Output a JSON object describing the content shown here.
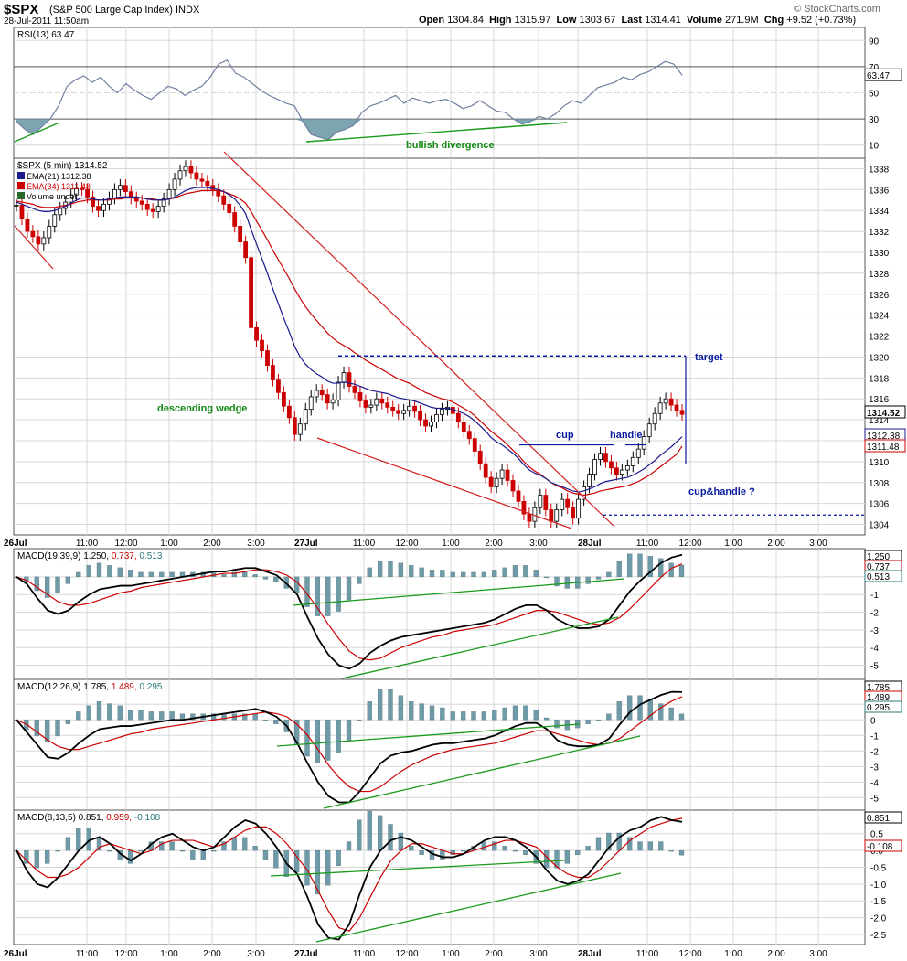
{
  "header": {
    "symbol": "$SPX",
    "name": "(S&P 500 Large Cap Index) INDX",
    "datetime": "28-Jul-2011 11:50am",
    "open_label": "Open",
    "open": "1304.84",
    "high_label": "High",
    "high": "1315.97",
    "low_label": "Low",
    "low": "1303.67",
    "last_label": "Last",
    "last": "1314.41",
    "volume_label": "Volume",
    "volume": "271.9M",
    "chg_label": "Chg",
    "chg": "+9.52 (+0.73%)",
    "logo": "© StockCharts.com"
  },
  "colors": {
    "panel_bg": "#ffffff",
    "grid": "#d8d8d8",
    "candle_up": "#000000",
    "candle_down": "#cc0000",
    "ema21": "#1a1a8c",
    "ema34": "#cc0000",
    "macd": "#000000",
    "signal": "#cc0000",
    "histogram": "#6f9aa8",
    "rsi_line": "#7080a0",
    "rsi_fill": "#6f9aa8",
    "trend_green": "#1a9a1a",
    "trend_red": "#d42020",
    "annotation_blue": "#0a1aa0",
    "annotation_green": "#118811"
  },
  "x_axis": {
    "labels": [
      "26Jul",
      "11:00",
      "12:00",
      "1:00",
      "2:00",
      "3:00",
      "27Jul",
      "11:00",
      "12:00",
      "1:00",
      "2:00",
      "3:00",
      "28Jul",
      "11:00",
      "12:00",
      "1:00",
      "2:00",
      "3:00"
    ]
  },
  "chart_data": [
    {
      "type": "line",
      "title": "RSI(13) 63.47",
      "series": [
        {
          "name": "RSI(13)",
          "last": 63.47
        }
      ],
      "ylim": [
        0,
        100
      ],
      "y_ticks": [
        "90",
        "70",
        "50",
        "30",
        "10"
      ],
      "reference_lines": [
        70,
        50,
        30
      ],
      "value_label": "63.47",
      "annotation": "bullish divergence",
      "points": [
        [
          0,
          28
        ],
        [
          2,
          22
        ],
        [
          4,
          18
        ],
        [
          6,
          24
        ],
        [
          8,
          30
        ],
        [
          10,
          40
        ],
        [
          12,
          55
        ],
        [
          14,
          60
        ],
        [
          16,
          63
        ],
        [
          18,
          58
        ],
        [
          20,
          62
        ],
        [
          22,
          55
        ],
        [
          24,
          50
        ],
        [
          26,
          57
        ],
        [
          28,
          52
        ],
        [
          30,
          48
        ],
        [
          32,
          45
        ],
        [
          34,
          50
        ],
        [
          36,
          55
        ],
        [
          38,
          53
        ],
        [
          40,
          48
        ],
        [
          42,
          52
        ],
        [
          44,
          55
        ],
        [
          46,
          62
        ],
        [
          48,
          72
        ],
        [
          50,
          75
        ],
        [
          52,
          65
        ],
        [
          54,
          62
        ],
        [
          56,
          57
        ],
        [
          58,
          52
        ],
        [
          60,
          48
        ],
        [
          62,
          45
        ],
        [
          64,
          42
        ],
        [
          66,
          40
        ],
        [
          68,
          28
        ],
        [
          70,
          18
        ],
        [
          72,
          16
        ],
        [
          74,
          14
        ],
        [
          76,
          20
        ],
        [
          78,
          22
        ],
        [
          80,
          25
        ],
        [
          82,
          35
        ],
        [
          84,
          40
        ],
        [
          86,
          42
        ],
        [
          88,
          45
        ],
        [
          90,
          48
        ],
        [
          92,
          42
        ],
        [
          94,
          46
        ],
        [
          96,
          44
        ],
        [
          98,
          42
        ],
        [
          100,
          44
        ],
        [
          102,
          45
        ],
        [
          104,
          42
        ],
        [
          106,
          38
        ],
        [
          108,
          40
        ],
        [
          110,
          44
        ],
        [
          112,
          40
        ],
        [
          114,
          36
        ],
        [
          116,
          35
        ],
        [
          118,
          30
        ],
        [
          120,
          26
        ],
        [
          122,
          28
        ],
        [
          124,
          32
        ],
        [
          126,
          30
        ],
        [
          128,
          34
        ],
        [
          130,
          40
        ],
        [
          132,
          44
        ],
        [
          134,
          42
        ],
        [
          136,
          48
        ],
        [
          138,
          54
        ],
        [
          140,
          56
        ],
        [
          142,
          58
        ],
        [
          144,
          62
        ],
        [
          146,
          60
        ],
        [
          148,
          64
        ],
        [
          150,
          66
        ],
        [
          152,
          70
        ],
        [
          154,
          74
        ],
        [
          156,
          72
        ],
        [
          158,
          63.47
        ]
      ]
    },
    {
      "type": "candlestick",
      "title": "$SPX (5 min) 1314.52",
      "legend": [
        "EMA(21) 1312.38",
        "EMA(34) 1311.48",
        "Volume undef"
      ],
      "ylim": [
        1303,
        1339
      ],
      "y_ticks": [
        1304,
        1306,
        1308,
        1310,
        1312,
        1314,
        1316,
        1318,
        1320,
        1322,
        1324,
        1326,
        1328,
        1330,
        1332,
        1334,
        1336,
        1338
      ],
      "value_labels": [
        "1314.52",
        "1312.38",
        "1311.48"
      ],
      "annotations": [
        "descending wedge",
        "target",
        "cup",
        "handle",
        "cup&handle ?"
      ],
      "closes": [
        1334.5,
        1333.2,
        1332.0,
        1331.5,
        1330.8,
        1331.4,
        1332.5,
        1333.6,
        1334.2,
        1334.8,
        1335.5,
        1336.1,
        1336.0,
        1335.3,
        1334.4,
        1334.0,
        1334.6,
        1335.2,
        1336.0,
        1336.4,
        1335.8,
        1335.2,
        1334.9,
        1334.6,
        1334.1,
        1333.9,
        1334.4,
        1335.1,
        1336.0,
        1337.0,
        1337.8,
        1338.2,
        1337.6,
        1337.0,
        1336.8,
        1336.4,
        1336.0,
        1335.4,
        1334.6,
        1333.8,
        1332.5,
        1331.0,
        1329.5,
        1322.8,
        1321.6,
        1320.6,
        1319.2,
        1317.8,
        1316.6,
        1315.3,
        1314.2,
        1312.6,
        1313.6,
        1315.0,
        1316.2,
        1316.8,
        1316.4,
        1315.6,
        1315.9,
        1317.6,
        1318.5,
        1317.2,
        1316.6,
        1315.8,
        1315.2,
        1315.4,
        1316.0,
        1315.6,
        1315.2,
        1314.9,
        1314.6,
        1314.9,
        1315.3,
        1314.8,
        1314.0,
        1313.4,
        1313.8,
        1314.5,
        1315.0,
        1315.2,
        1314.6,
        1313.8,
        1312.9,
        1312.2,
        1311.0,
        1309.8,
        1308.5,
        1307.6,
        1308.4,
        1309.2,
        1308.2,
        1307.2,
        1306.2,
        1305.0,
        1304.3,
        1305.6,
        1306.8,
        1305.4,
        1304.3,
        1305.4,
        1306.4,
        1305.6,
        1304.6,
        1306.4,
        1307.6,
        1308.8,
        1310.2,
        1310.8,
        1310.0,
        1309.4,
        1308.8,
        1309.2,
        1309.6,
        1310.4,
        1311.2,
        1312.4,
        1313.6,
        1314.6,
        1315.6,
        1316.0,
        1315.4,
        1314.9,
        1314.52
      ],
      "ema21": [
        1334.8,
        1334.6,
        1334.4,
        1334.2,
        1334.0,
        1333.9,
        1333.9,
        1334.0,
        1334.2,
        1334.4,
        1334.7,
        1335.0,
        1335.2,
        1335.2,
        1335.1,
        1335.0,
        1335.0,
        1335.1,
        1335.2,
        1335.3,
        1335.3,
        1335.3,
        1335.3,
        1335.2,
        1335.1,
        1335.0,
        1335.0,
        1335.0,
        1335.1,
        1335.3,
        1335.6,
        1335.9,
        1336.1,
        1336.2,
        1336.2,
        1336.2,
        1336.1,
        1336.0,
        1335.8,
        1335.5,
        1335.1,
        1334.5,
        1333.7,
        1332.2,
        1330.8,
        1329.4,
        1328.0,
        1326.5,
        1325.1,
        1323.7,
        1322.4,
        1321.0,
        1320.0,
        1319.3,
        1318.8,
        1318.4,
        1318.1,
        1317.7,
        1317.5,
        1317.5,
        1317.6,
        1317.5,
        1317.4,
        1317.2,
        1317.0,
        1316.8,
        1316.7,
        1316.6,
        1316.5,
        1316.3,
        1316.1,
        1316.0,
        1315.9,
        1315.8,
        1315.6,
        1315.4,
        1315.2,
        1315.1,
        1315.1,
        1315.1,
        1315.0,
        1314.8,
        1314.6,
        1314.3,
        1313.9,
        1313.4,
        1312.9,
        1312.3,
        1311.9,
        1311.6,
        1311.2,
        1310.8,
        1310.3,
        1309.7,
        1309.2,
        1308.9,
        1308.7,
        1308.4,
        1308.0,
        1307.8,
        1307.6,
        1307.4,
        1307.2,
        1307.1,
        1307.2,
        1307.4,
        1307.6,
        1307.9,
        1308.1,
        1308.2,
        1308.3,
        1308.4,
        1308.5,
        1308.7,
        1309.0,
        1309.3,
        1309.7,
        1310.1,
        1310.6,
        1311.0,
        1311.4,
        1311.9,
        1312.38
      ],
      "ema34": [
        1334.9,
        1334.8,
        1334.7,
        1334.6,
        1334.4,
        1334.3,
        1334.3,
        1334.3,
        1334.4,
        1334.5,
        1334.6,
        1334.8,
        1334.9,
        1335.0,
        1335.0,
        1335.0,
        1335.0,
        1335.0,
        1335.1,
        1335.1,
        1335.2,
        1335.2,
        1335.2,
        1335.2,
        1335.1,
        1335.1,
        1335.0,
        1335.0,
        1335.1,
        1335.2,
        1335.4,
        1335.6,
        1335.7,
        1335.8,
        1335.9,
        1335.9,
        1335.9,
        1335.9,
        1335.8,
        1335.6,
        1335.4,
        1335.1,
        1334.7,
        1333.9,
        1333.0,
        1332.1,
        1331.2,
        1330.2,
        1329.3,
        1328.4,
        1327.5,
        1326.5,
        1325.6,
        1324.8,
        1324.1,
        1323.5,
        1322.9,
        1322.3,
        1321.8,
        1321.4,
        1321.1,
        1320.8,
        1320.4,
        1320.1,
        1319.7,
        1319.4,
        1319.1,
        1318.8,
        1318.5,
        1318.2,
        1317.9,
        1317.7,
        1317.5,
        1317.2,
        1316.9,
        1316.6,
        1316.4,
        1316.2,
        1316.0,
        1315.9,
        1315.7,
        1315.4,
        1315.1,
        1314.8,
        1314.4,
        1313.9,
        1313.4,
        1312.9,
        1312.5,
        1312.1,
        1311.6,
        1311.1,
        1310.6,
        1310.0,
        1309.5,
        1309.1,
        1308.8,
        1308.4,
        1308.0,
        1307.7,
        1307.5,
        1307.2,
        1307.0,
        1306.9,
        1306.8,
        1306.9,
        1307.0,
        1307.2,
        1307.3,
        1307.4,
        1307.5,
        1307.6,
        1307.7,
        1307.9,
        1308.1,
        1308.4,
        1308.7,
        1309.1,
        1309.5,
        1309.9,
        1310.3,
        1310.7,
        1311.48
      ],
      "wedge_upper": [
        [
          1338.9,
          49
        ],
        [
          1304.0,
          142
        ]
      ],
      "wedge_lower": [
        [
          1312.0,
          75
        ],
        [
          1304.0,
          128
        ]
      ],
      "target_level": 1320.1,
      "cup_level": 1311.6,
      "support_level": 1304.9
    },
    {
      "type": "line",
      "title": "MACD(19,39,9) 1.250, 0.737, 0.513",
      "series": [
        {
          "name": "MACD(19,39,9)",
          "last": 1.25
        },
        {
          "name": "Signal",
          "last": 0.737
        },
        {
          "name": "Histogram",
          "last": 0.513
        }
      ],
      "ylim": [
        -5.8,
        1.6
      ],
      "y_ticks": [
        "0",
        "-1",
        "-2",
        "-3",
        "-4",
        "-5"
      ],
      "value_labels": [
        "1.250",
        "0.737",
        "0.513"
      ],
      "macd": [
        0,
        -0.4,
        -1.2,
        -1.9,
        -2.1,
        -1.9,
        -1.4,
        -1.0,
        -0.7,
        -0.6,
        -0.5,
        -0.5,
        -0.4,
        -0.3,
        -0.2,
        -0.1,
        0.0,
        0.1,
        0.2,
        0.3,
        0.3,
        0.4,
        0.5,
        0.5,
        0.3,
        0.1,
        -0.4,
        -1.0,
        -2.3,
        -3.5,
        -4.4,
        -5.0,
        -5.2,
        -4.9,
        -4.3,
        -3.9,
        -3.6,
        -3.4,
        -3.3,
        -3.2,
        -3.1,
        -3.0,
        -2.9,
        -2.8,
        -2.7,
        -2.6,
        -2.4,
        -2.1,
        -1.8,
        -1.6,
        -1.6,
        -1.9,
        -2.4,
        -2.7,
        -2.9,
        -2.9,
        -2.8,
        -2.4,
        -1.6,
        -0.8,
        -0.2,
        0.3,
        0.8,
        1.1,
        1.25
      ],
      "signal": [
        0,
        -0.2,
        -0.6,
        -1.0,
        -1.4,
        -1.6,
        -1.6,
        -1.5,
        -1.3,
        -1.1,
        -0.9,
        -0.8,
        -0.6,
        -0.5,
        -0.4,
        -0.3,
        -0.2,
        -0.1,
        0.0,
        0.1,
        0.2,
        0.2,
        0.3,
        0.4,
        0.4,
        0.3,
        0.1,
        -0.3,
        -1.0,
        -1.8,
        -2.7,
        -3.5,
        -4.2,
        -4.6,
        -4.7,
        -4.6,
        -4.3,
        -4.0,
        -3.8,
        -3.6,
        -3.4,
        -3.3,
        -3.1,
        -3.0,
        -2.9,
        -2.8,
        -2.7,
        -2.5,
        -2.3,
        -2.1,
        -1.9,
        -1.9,
        -2.0,
        -2.2,
        -2.4,
        -2.6,
        -2.7,
        -2.6,
        -2.3,
        -1.8,
        -1.2,
        -0.6,
        0.0,
        0.5,
        0.737
      ]
    },
    {
      "type": "line",
      "title": "MACD(12,26,9) 1.785, 1.489, 0.295",
      "series": [
        {
          "name": "MACD(12,26,9)",
          "last": 1.785
        },
        {
          "name": "Signal",
          "last": 1.489
        },
        {
          "name": "Histogram",
          "last": 0.295
        }
      ],
      "ylim": [
        -5.8,
        2.6
      ],
      "y_ticks": [
        "1",
        "0",
        "-1",
        "-2",
        "-3",
        "-4",
        "-5"
      ],
      "value_labels": [
        "1.785",
        "1.489",
        "0.295"
      ],
      "macd": [
        0,
        -0.8,
        -1.6,
        -2.4,
        -2.5,
        -2.1,
        -1.5,
        -1.0,
        -0.6,
        -0.5,
        -0.4,
        -0.4,
        -0.3,
        -0.2,
        -0.1,
        0.0,
        0.0,
        0.1,
        0.2,
        0.3,
        0.4,
        0.5,
        0.6,
        0.7,
        0.5,
        0.2,
        -0.4,
        -1.5,
        -2.8,
        -4.0,
        -4.9,
        -5.3,
        -5.3,
        -4.6,
        -3.7,
        -2.8,
        -2.3,
        -2.1,
        -2.0,
        -1.8,
        -1.6,
        -1.5,
        -1.5,
        -1.4,
        -1.3,
        -1.2,
        -1.0,
        -0.7,
        -0.4,
        -0.2,
        -0.2,
        -0.6,
        -1.3,
        -1.6,
        -1.7,
        -1.7,
        -1.6,
        -1.2,
        -0.3,
        0.5,
        1.0,
        1.3,
        1.6,
        1.8,
        1.785
      ],
      "signal": [
        0,
        -0.3,
        -0.8,
        -1.3,
        -1.7,
        -1.9,
        -1.9,
        -1.7,
        -1.5,
        -1.3,
        -1.1,
        -0.9,
        -0.8,
        -0.6,
        -0.5,
        -0.4,
        -0.3,
        -0.2,
        -0.1,
        0.0,
        0.1,
        0.2,
        0.3,
        0.4,
        0.5,
        0.4,
        0.2,
        -0.3,
        -1.0,
        -1.9,
        -2.9,
        -3.7,
        -4.3,
        -4.6,
        -4.6,
        -4.3,
        -3.8,
        -3.3,
        -2.9,
        -2.6,
        -2.3,
        -2.1,
        -1.9,
        -1.8,
        -1.7,
        -1.6,
        -1.5,
        -1.3,
        -1.1,
        -0.9,
        -0.7,
        -0.7,
        -0.9,
        -1.1,
        -1.3,
        -1.5,
        -1.6,
        -1.5,
        -1.2,
        -0.7,
        -0.2,
        0.3,
        0.8,
        1.2,
        1.489
      ]
    },
    {
      "type": "line",
      "title": "MACD(8,13,5) 0.851, 0.959, -0.108",
      "series": [
        {
          "name": "MACD(8,13,5)",
          "last": 0.851
        },
        {
          "name": "Signal",
          "last": 0.959
        },
        {
          "name": "Histogram",
          "last": -0.108
        }
      ],
      "ylim": [
        -2.8,
        1.2
      ],
      "y_ticks": [
        "0.5",
        "0.0",
        "-0.5",
        "-1.0",
        "-1.5",
        "-2.0",
        "-2.5"
      ],
      "value_labels": [
        "0.851",
        "-0.108"
      ],
      "macd": [
        0,
        -0.6,
        -1.0,
        -1.1,
        -0.8,
        -0.4,
        0.0,
        0.3,
        0.4,
        0.2,
        -0.1,
        -0.3,
        -0.1,
        0.2,
        0.4,
        0.5,
        0.3,
        0.1,
        0.0,
        0.1,
        0.4,
        0.7,
        0.9,
        0.8,
        0.5,
        0.1,
        -0.4,
        -0.7,
        -1.4,
        -2.2,
        -2.6,
        -2.65,
        -2.2,
        -1.3,
        -0.5,
        0.0,
        0.3,
        0.4,
        0.3,
        0.1,
        -0.1,
        -0.2,
        -0.2,
        -0.1,
        0.1,
        0.3,
        0.4,
        0.4,
        0.3,
        0.1,
        -0.2,
        -0.6,
        -0.9,
        -1.0,
        -0.9,
        -0.7,
        -0.3,
        0.1,
        0.4,
        0.6,
        0.7,
        0.9,
        1.0,
        0.9,
        0.851
      ],
      "signal": [
        0,
        -0.3,
        -0.6,
        -0.8,
        -0.8,
        -0.7,
        -0.5,
        -0.2,
        0.1,
        0.2,
        0.1,
        0.0,
        -0.1,
        0.0,
        0.2,
        0.3,
        0.3,
        0.3,
        0.2,
        0.1,
        0.2,
        0.4,
        0.6,
        0.7,
        0.7,
        0.5,
        0.2,
        -0.2,
        -0.6,
        -1.2,
        -1.8,
        -2.3,
        -2.4,
        -2.0,
        -1.4,
        -0.8,
        -0.3,
        0.0,
        0.2,
        0.2,
        0.1,
        0.0,
        -0.1,
        -0.1,
        0.0,
        0.1,
        0.2,
        0.3,
        0.3,
        0.2,
        0.1,
        -0.2,
        -0.5,
        -0.7,
        -0.8,
        -0.8,
        -0.6,
        -0.3,
        0.0,
        0.3,
        0.5,
        0.7,
        0.8,
        0.9,
        0.959
      ]
    }
  ]
}
